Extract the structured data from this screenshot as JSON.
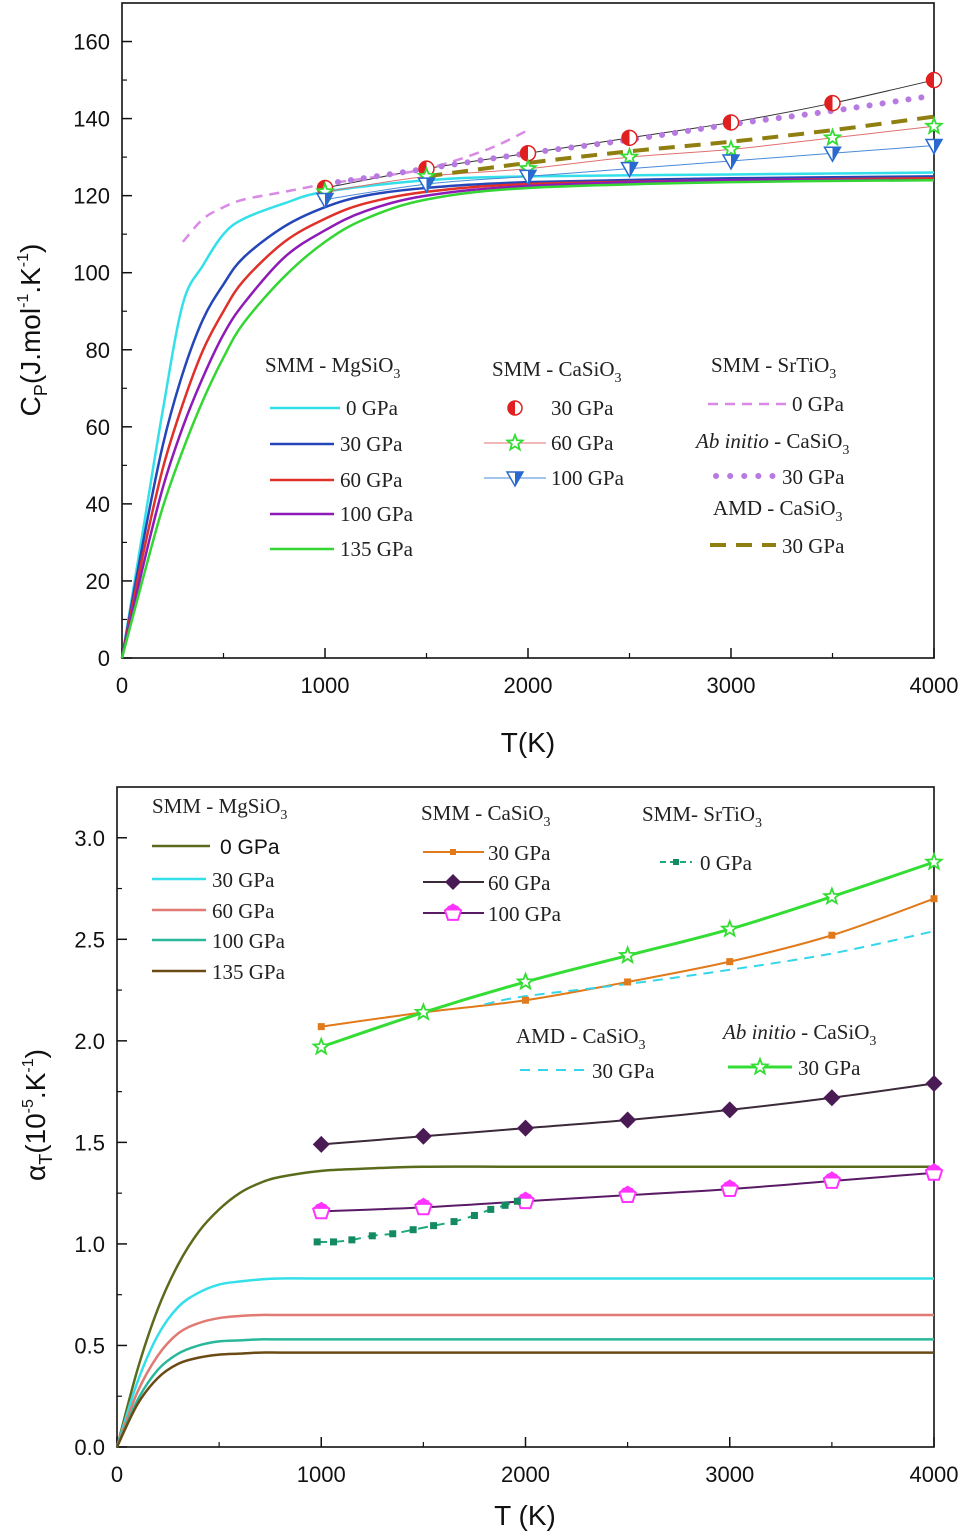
{
  "chart_data": [
    {
      "type": "line",
      "xlabel": "T(K)",
      "ylabel": "C_P(J.mol^-1.K^-1)",
      "xlim": [
        0,
        4000
      ],
      "ylim": [
        0,
        170
      ],
      "xticks": [
        0,
        1000,
        2000,
        3000,
        4000
      ],
      "yticks": [
        0,
        20,
        40,
        60,
        80,
        100,
        120,
        140,
        160
      ],
      "grid": false,
      "legend_groups": [
        {
          "title": "SMM - MgSiO3",
          "series": [
            0,
            1,
            2,
            3,
            4
          ]
        },
        {
          "title": "SMM - CaSiO3",
          "series": [
            5,
            6,
            7
          ]
        },
        {
          "title": "SMM - SrTiO3",
          "series": [
            8
          ]
        },
        {
          "title": "Ab initio - CaSiO3",
          "series": [
            9
          ]
        },
        {
          "title": "AMD - CaSiO3",
          "series": [
            10
          ]
        }
      ],
      "series": [
        {
          "name": "0 GPa",
          "group": "SMM - MgSiO3",
          "color": "#33e0ea",
          "style": "solid",
          "width": 2.5,
          "x": [
            0,
            100,
            200,
            300,
            400,
            500,
            600,
            800,
            1000,
            1500,
            2000,
            3000,
            4000
          ],
          "y": [
            0,
            32,
            64,
            92,
            102,
            110,
            114,
            118,
            121,
            124,
            125,
            125.5,
            126
          ]
        },
        {
          "name": "30 GPa",
          "group": "SMM - MgSiO3",
          "color": "#2446b8",
          "style": "solid",
          "width": 2.5,
          "x": [
            0,
            100,
            200,
            300,
            400,
            500,
            600,
            800,
            1000,
            1200,
            1500,
            2000,
            3000,
            4000
          ],
          "y": [
            0,
            29,
            55,
            74,
            88,
            97,
            104,
            112,
            117,
            120,
            122,
            123.5,
            124.5,
            125
          ]
        },
        {
          "name": "60 GPa",
          "group": "SMM - MgSiO3",
          "color": "#e0302a",
          "style": "solid",
          "width": 2.5,
          "x": [
            0,
            100,
            200,
            300,
            400,
            500,
            600,
            800,
            1000,
            1200,
            1500,
            2000,
            3000,
            4000
          ],
          "y": [
            0,
            26,
            49,
            66,
            80,
            90,
            98,
            108,
            114,
            118,
            121,
            123,
            124,
            124.5
          ]
        },
        {
          "name": "100 GPa",
          "group": "SMM - MgSiO3",
          "color": "#8e1bb8",
          "style": "solid",
          "width": 2.5,
          "x": [
            0,
            100,
            200,
            300,
            400,
            500,
            600,
            800,
            1000,
            1200,
            1500,
            2000,
            3000,
            4000
          ],
          "y": [
            0,
            23,
            44,
            60,
            73,
            84,
            92,
            104,
            111,
            116,
            120,
            122.5,
            124,
            124
          ]
        },
        {
          "name": "135 GPa",
          "group": "SMM - MgSiO3",
          "color": "#33d633",
          "style": "solid",
          "width": 2.5,
          "x": [
            0,
            100,
            200,
            300,
            400,
            500,
            600,
            800,
            1000,
            1200,
            1500,
            2000,
            3000,
            4000
          ],
          "y": [
            0,
            20,
            39,
            54,
            67,
            78,
            87,
            99,
            108,
            114,
            119,
            122,
            123.5,
            124
          ]
        },
        {
          "name": "30 GPa",
          "group": "SMM - CaSiO3",
          "color": "#333333",
          "marker": "half-circle",
          "marker_color": "#e02020",
          "style": "solid",
          "width": 1,
          "x": [
            1000,
            1500,
            2000,
            2500,
            3000,
            3500,
            4000
          ],
          "y": [
            122,
            127,
            131,
            135,
            139,
            144,
            150
          ]
        },
        {
          "name": "60 GPa",
          "group": "SMM - CaSiO3",
          "color": "#e07070",
          "marker": "star",
          "marker_color": "#33dd33",
          "style": "solid",
          "width": 1,
          "x": [
            1000,
            1500,
            2000,
            2500,
            3000,
            3500,
            4000
          ],
          "y": [
            121,
            125,
            127,
            130,
            132,
            135,
            138
          ]
        },
        {
          "name": "100 GPa",
          "group": "SMM - CaSiO3",
          "color": "#4a8ad8",
          "marker": "half-triangle-down",
          "marker_color": "#2a6ad0",
          "style": "solid",
          "width": 1,
          "x": [
            1000,
            1500,
            2000,
            2500,
            3000,
            3500,
            4000
          ],
          "y": [
            119,
            123,
            125,
            127,
            129,
            131,
            133
          ]
        },
        {
          "name": "0 GPa",
          "group": "SMM - SrTiO3",
          "color": "#d98ae6",
          "style": "dashed",
          "width": 2.5,
          "x": [
            300,
            400,
            500,
            600,
            800,
            1000,
            1200,
            1500,
            1800,
            2000
          ],
          "y": [
            108,
            114,
            117,
            119,
            121,
            123,
            124.5,
            127,
            132,
            137
          ]
        },
        {
          "name": "30 GPa",
          "group": "Ab initio - CaSiO3",
          "color": "#b67ae0",
          "style": "dotted",
          "width": 5,
          "x": [
            1000,
            1500,
            2000,
            2500,
            3000,
            3500,
            4000
          ],
          "y": [
            123,
            127,
            131,
            134.5,
            138.5,
            142,
            146
          ]
        },
        {
          "name": "30 GPa",
          "group": "AMD - CaSiO3",
          "color": "#8f7f10",
          "style": "dashed-bold",
          "width": 4,
          "x": [
            1500,
            2000,
            2500,
            3000,
            3500,
            4000
          ],
          "y": [
            125,
            128.5,
            131.5,
            134,
            137,
            140.5
          ]
        }
      ]
    },
    {
      "type": "line",
      "xlabel": "T (K)",
      "ylabel": "α_T(10^-5.K^-1)",
      "xlim": [
        0,
        4000
      ],
      "ylim": [
        0,
        3.25
      ],
      "xticks": [
        0,
        1000,
        2000,
        3000,
        4000
      ],
      "yticks": [
        0.0,
        0.5,
        1.0,
        1.5,
        2.0,
        2.5,
        3.0
      ],
      "grid": false,
      "legend_groups": [
        {
          "title": "SMM - MgSiO3",
          "series": [
            0,
            1,
            2,
            3,
            4
          ]
        },
        {
          "title": "SMM - CaSiO3",
          "series": [
            5,
            6,
            7
          ]
        },
        {
          "title": "SMM- SrTiO3",
          "series": [
            8
          ]
        },
        {
          "title": "AMD - CaSiO3",
          "series": [
            9
          ]
        },
        {
          "title": "Ab initio - CaSiO3",
          "series": [
            10
          ]
        }
      ],
      "series": [
        {
          "name": "0 GPa",
          "group": "SMM - MgSiO3",
          "color": "#5a6b1c",
          "style": "solid",
          "width": 2.5,
          "x": [
            0,
            100,
            200,
            300,
            400,
            500,
            600,
            700,
            800,
            1000,
            1200,
            1500,
            2000,
            3000,
            4000
          ],
          "y": [
            0,
            0.38,
            0.68,
            0.9,
            1.06,
            1.17,
            1.25,
            1.3,
            1.33,
            1.36,
            1.37,
            1.38,
            1.38,
            1.38,
            1.38
          ]
        },
        {
          "name": "30 GPa",
          "group": "SMM - MgSiO3",
          "color": "#33e0ea",
          "style": "solid",
          "width": 2.5,
          "x": [
            0,
            100,
            200,
            300,
            400,
            500,
            600,
            700,
            800,
            1000,
            2000,
            3000,
            4000
          ],
          "y": [
            0,
            0.32,
            0.55,
            0.69,
            0.76,
            0.8,
            0.815,
            0.825,
            0.83,
            0.83,
            0.83,
            0.83,
            0.83
          ]
        },
        {
          "name": "60 GPa",
          "group": "SMM - MgSiO3",
          "color": "#e07a72",
          "style": "solid",
          "width": 2.5,
          "x": [
            0,
            100,
            200,
            300,
            400,
            500,
            600,
            700,
            800,
            1000,
            2000,
            3000,
            4000
          ],
          "y": [
            0,
            0.27,
            0.45,
            0.56,
            0.61,
            0.635,
            0.645,
            0.65,
            0.65,
            0.65,
            0.65,
            0.65,
            0.65
          ]
        },
        {
          "name": "100 GPa",
          "group": "SMM - MgSiO3",
          "color": "#2ab89a",
          "style": "solid",
          "width": 2.5,
          "x": [
            0,
            100,
            200,
            300,
            400,
            500,
            600,
            700,
            800,
            1000,
            2000,
            3000,
            4000
          ],
          "y": [
            0,
            0.23,
            0.38,
            0.46,
            0.5,
            0.52,
            0.525,
            0.53,
            0.53,
            0.53,
            0.53,
            0.53,
            0.53
          ]
        },
        {
          "name": "135 GPa",
          "group": "SMM - MgSiO3",
          "color": "#6b4a14",
          "style": "solid",
          "width": 2.5,
          "x": [
            0,
            100,
            200,
            300,
            400,
            500,
            600,
            700,
            800,
            1000,
            2000,
            3000,
            4000
          ],
          "y": [
            0,
            0.21,
            0.34,
            0.41,
            0.44,
            0.455,
            0.46,
            0.465,
            0.465,
            0.465,
            0.465,
            0.465,
            0.465
          ]
        },
        {
          "name": "30 GPa",
          "group": "SMM - CaSiO3",
          "color": "#e07a1a",
          "marker": "square",
          "marker_color": "#e07a1a",
          "style": "solid",
          "width": 2,
          "x": [
            1000,
            1500,
            2000,
            2500,
            3000,
            3500,
            4000
          ],
          "y": [
            2.07,
            2.14,
            2.2,
            2.29,
            2.39,
            2.52,
            2.7
          ]
        },
        {
          "name": "60 GPa",
          "group": "SMM - CaSiO3",
          "color": "#3a2a3a",
          "marker": "diamond",
          "marker_color": "#4a1a55",
          "style": "solid",
          "width": 2,
          "x": [
            1000,
            1500,
            2000,
            2500,
            3000,
            3500,
            4000
          ],
          "y": [
            1.49,
            1.53,
            1.57,
            1.61,
            1.66,
            1.72,
            1.79
          ]
        },
        {
          "name": "100 GPa",
          "group": "SMM - CaSiO3",
          "color": "#5a1a66",
          "marker": "pentagon",
          "marker_color": "#ff33ff",
          "style": "solid",
          "width": 2,
          "x": [
            1000,
            1500,
            2000,
            2500,
            3000,
            3500,
            4000
          ],
          "y": [
            1.16,
            1.18,
            1.21,
            1.24,
            1.27,
            1.31,
            1.35
          ]
        },
        {
          "name": "0 GPa",
          "group": "SMM- SrTiO3",
          "color": "#1fa880",
          "marker": "small-square",
          "marker_color": "#148a60",
          "style": "dashed",
          "width": 2,
          "x": [
            980,
            1060,
            1150,
            1250,
            1350,
            1450,
            1550,
            1650,
            1750,
            1830,
            1900,
            1960
          ],
          "y": [
            1.01,
            1.01,
            1.02,
            1.04,
            1.05,
            1.07,
            1.09,
            1.11,
            1.14,
            1.17,
            1.19,
            1.21
          ]
        },
        {
          "name": "30 GPa",
          "group": "AMD - CaSiO3",
          "color": "#33d6ea",
          "style": "dashed",
          "width": 2,
          "x": [
            1800,
            2000,
            2500,
            3000,
            3500,
            4000
          ],
          "y": [
            2.18,
            2.22,
            2.28,
            2.35,
            2.43,
            2.54
          ]
        },
        {
          "name": "30 GPa",
          "group": "Ab initio - CaSiO3",
          "color": "#33dd33",
          "marker": "star",
          "marker_color": "#33dd33",
          "style": "solid",
          "width": 3,
          "x": [
            1000,
            1500,
            2000,
            2500,
            3000,
            3500,
            4000
          ],
          "y": [
            1.97,
            2.14,
            2.29,
            2.42,
            2.55,
            2.71,
            2.88
          ]
        }
      ]
    }
  ]
}
